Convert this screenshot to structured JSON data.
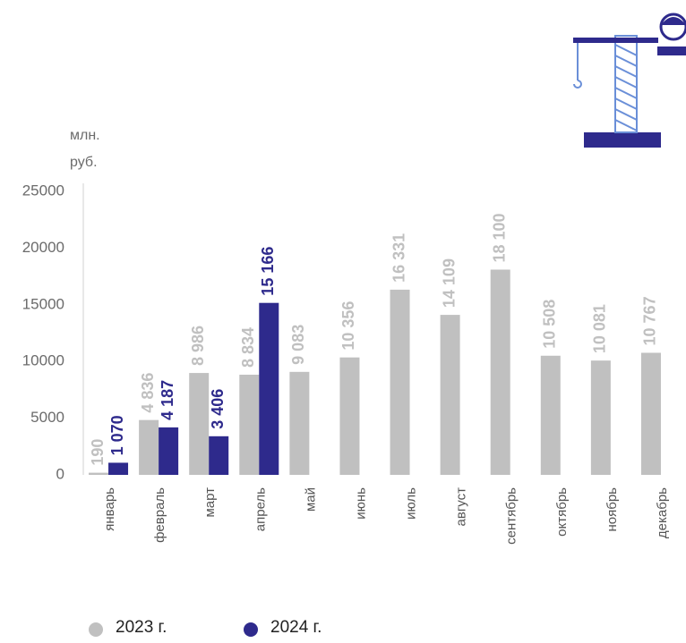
{
  "chart_data": {
    "type": "bar",
    "y_label": [
      "млн.",
      "руб."
    ],
    "categories": [
      "январь",
      "февраль",
      "март",
      "апрель",
      "май",
      "июнь",
      "июль",
      "август",
      "сентябрь",
      "октябрь",
      "ноябрь",
      "декабрь"
    ],
    "series": [
      {
        "name": "2023 г.",
        "color": "#c0c0c0",
        "values": [
          190,
          4836,
          8986,
          8834,
          9083,
          10356,
          16331,
          14109,
          18100,
          10508,
          10081,
          10767
        ],
        "value_labels": [
          "190",
          "4 836",
          "8 986",
          "8 834",
          "9 083",
          "10 356",
          "16 331",
          "14 109",
          "18 100",
          "10 508",
          "10 081",
          "10 767"
        ]
      },
      {
        "name": "2024 г.",
        "color": "#2e2a8c",
        "values": [
          1070,
          4187,
          3406,
          15166,
          null,
          null,
          null,
          null,
          null,
          null,
          null,
          null
        ],
        "value_labels": [
          "1 070",
          "4 187",
          "3 406",
          "15 166",
          null,
          null,
          null,
          null,
          null,
          null,
          null,
          null
        ]
      }
    ],
    "ylim": [
      0,
      25000
    ],
    "yticks": [
      0,
      5000,
      10000,
      15000,
      20000,
      25000
    ],
    "grid": false
  }
}
